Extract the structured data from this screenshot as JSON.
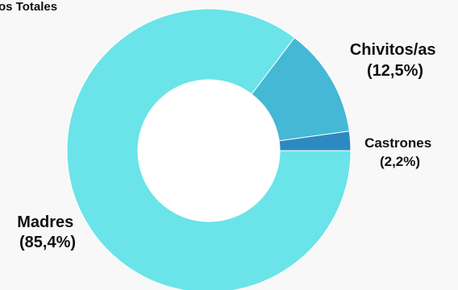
{
  "chart_data": {
    "type": "pie",
    "title": "os Totales",
    "donut": true,
    "slices": [
      {
        "name": "Madres",
        "value": 85.4,
        "pct_label": "(85,4%)",
        "color": "#6ae4e8"
      },
      {
        "name": "Chivitos/as",
        "value": 12.5,
        "pct_label": "(12,5%)",
        "color": "#45b8d6"
      },
      {
        "name": "Castrones",
        "value": 2.2,
        "pct_label": "(2,2%)",
        "color": "#2d8ac0"
      }
    ]
  }
}
